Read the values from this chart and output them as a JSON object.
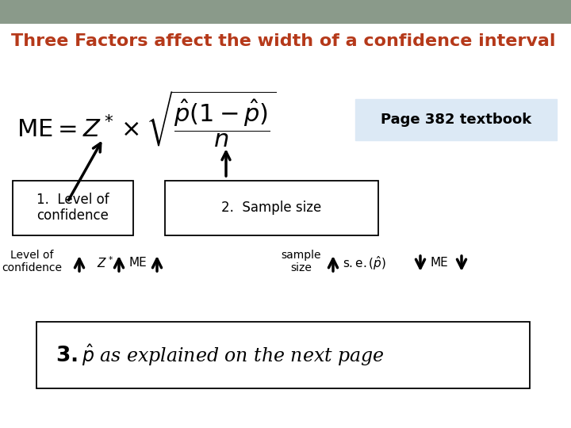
{
  "bg_color": "#ffffff",
  "header_color": "#8a9a8a",
  "title": "Three Factors affect the width of a confidence interval",
  "title_color": "#b5391a",
  "title_fontsize": 16,
  "page_box_text": "Page 382 textbook",
  "page_box_bg": "#dce9f5",
  "box1_text": "1.  Level of\nconfidence",
  "box2_text": "2.  Sample size"
}
